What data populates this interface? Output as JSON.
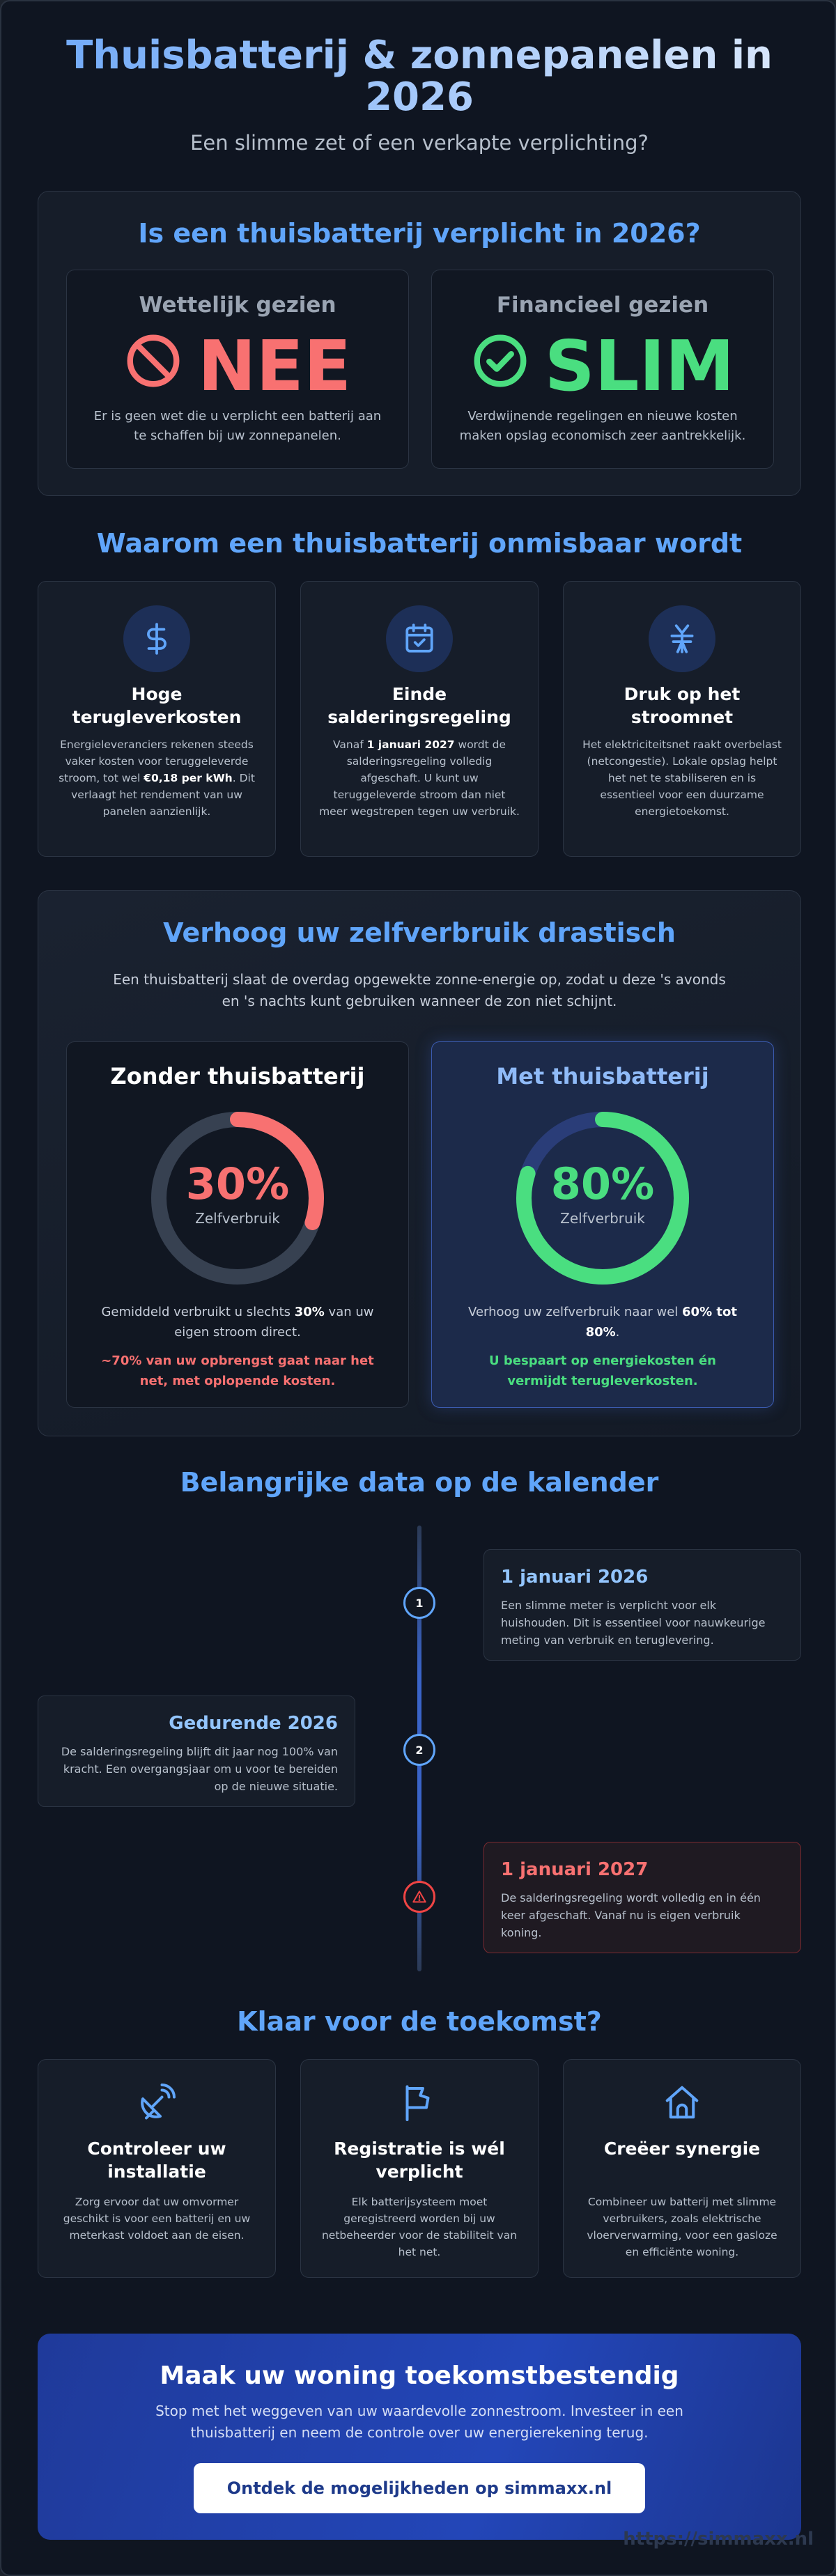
{
  "hero": {
    "title": "Thuisbatterij & zonnepanelen in 2026",
    "subtitle": "Een slimme zet of een verkapte verplichting?"
  },
  "question": {
    "heading": "Is een thuisbatterij verplicht in 2026?",
    "legal": {
      "label": "Wettelijk gezien",
      "answer": "NEE",
      "icon": "ban-icon",
      "color": "#f87171",
      "text": "Er is geen wet die u verplicht een batterij aan te schaffen bij uw zonnepanelen."
    },
    "financial": {
      "label": "Financieel gezien",
      "answer": "SLIM",
      "icon": "check-circle-icon",
      "color": "#4ade80",
      "text": "Verdwijnende regelingen en nieuwe kosten maken opslag economisch zeer aantrekkelijk."
    }
  },
  "why": {
    "heading": "Waarom een thuisbatterij onmisbaar wordt",
    "items": [
      {
        "icon": "dollar-icon",
        "title": "Hoge terugleverkosten",
        "text_a": "Energieleveranciers rekenen steeds vaker kosten voor teruggeleverde stroom, tot wel ",
        "bold": "€0,18 per kWh",
        "text_b": ". Dit verlaagt het rendement van uw panelen aanzienlijk."
      },
      {
        "icon": "calendar-check-icon",
        "title": "Einde salderingsregeling",
        "text_a": "Vanaf ",
        "bold": "1 januari 2027",
        "text_b": " wordt de salderingsregeling volledig afgeschaft. U kunt uw teruggeleverde stroom dan niet meer wegstrepen tegen uw verbruik."
      },
      {
        "icon": "power-grid-icon",
        "title": "Druk op het stroomnet",
        "text_a": "Het elektriciteitsnet raakt overbelast (netcongestie). Lokale opslag helpt het net te stabiliseren en is essentieel voor een duurzame energietoekomst.",
        "bold": "",
        "text_b": ""
      }
    ]
  },
  "selfuse": {
    "heading": "Verhoog uw zelfverbruik drastisch",
    "intro": "Een thuisbatterij slaat de overdag opgewekte zonne-energie op, zodat u deze 's avonds en 's nachts kunt gebruiken wanneer de zon niet schijnt.",
    "without": {
      "title": "Zonder thuisbatterij",
      "percent": 30,
      "percent_label": "30%",
      "ring_label": "Zelfverbruik",
      "text_a": "Gemiddeld verbruikt u slechts ",
      "bold": "30%",
      "text_b": " van uw eigen stroom direct.",
      "note": "~70% van uw opbrengst gaat naar het net, met oplopende kosten.",
      "color": "#f87171"
    },
    "with": {
      "title": "Met thuisbatterij",
      "percent": 80,
      "percent_label": "80%",
      "ring_label": "Zelfverbruik",
      "text_a": "Verhoog uw zelfverbruik naar wel ",
      "bold": "60% tot 80%",
      "text_b": ".",
      "note": "U bespaart op energiekosten én vermijdt terugleverkosten.",
      "color": "#4ade80"
    }
  },
  "calendar": {
    "heading": "Belangrijke data op de kalender",
    "events": [
      {
        "marker": "1",
        "date": "1 januari 2026",
        "text": "Een slimme meter is verplicht voor elk huishouden. Dit is essentieel voor nauwkeurige meting van verbruik en teruglevering."
      },
      {
        "marker": "2",
        "date": "Gedurende 2026",
        "text": "De salderingsregeling blijft dit jaar nog 100% van kracht. Een overgangsjaar om u voor te bereiden op de nieuwe situatie."
      },
      {
        "marker": "warning-icon",
        "date": "1 januari 2027",
        "text": "De salderingsregeling wordt volledig en in één keer afgeschaft. Vanaf nu is eigen verbruik koning."
      }
    ]
  },
  "ready": {
    "heading": "Klaar voor de toekomst?",
    "items": [
      {
        "icon": "satellite-dish-icon",
        "title": "Controleer uw installatie",
        "text": "Zorg ervoor dat uw omvormer geschikt is voor een batterij en uw meterkast voldoet aan de eisen."
      },
      {
        "icon": "flag-icon",
        "title": "Registratie is wél verplicht",
        "text": "Elk batterijsysteem moet geregistreerd worden bij uw netbeheerder voor de stabiliteit van het net."
      },
      {
        "icon": "home-icon",
        "title": "Creëer synergie",
        "text": "Combineer uw batterij met slimme verbruikers, zoals elektrische vloerverwarming, voor een gasloze en efficiënte woning."
      }
    ]
  },
  "cta": {
    "title": "Maak uw woning toekomstbestendig",
    "text": "Stop met het weggeven van uw waardevolle zonnestroom. Investeer in een thuisbatterij en neem de controle over uw energierekening terug.",
    "button": "Ontdek de mogelijkheden op simmaxx.nl"
  },
  "watermark": "https://simmaxx.nl",
  "colors": {
    "accent": "#60a5fa",
    "red": "#f87171",
    "green": "#4ade80",
    "background": "#0f1521"
  }
}
